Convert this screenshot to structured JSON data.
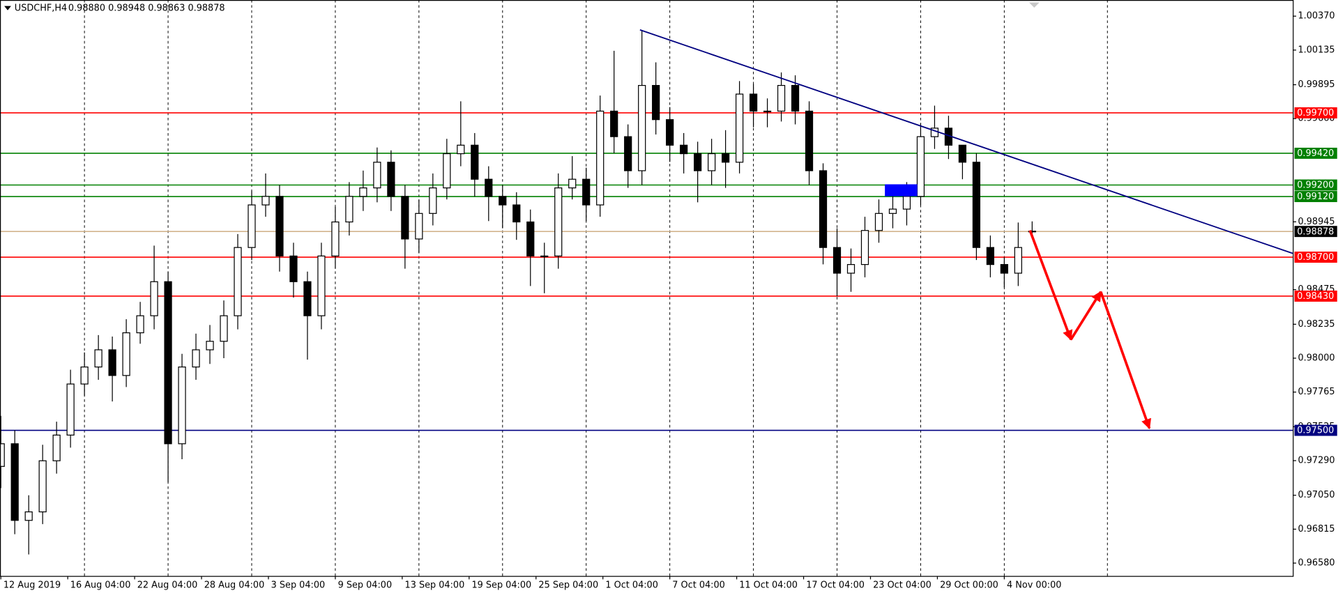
{
  "chart_data": {
    "type": "candlestick",
    "symbol": "USDCHF,H4",
    "header_values": "0.98880 0.98948 0.98863 0.98878",
    "x": [
      0,
      5,
      10,
      15,
      20,
      25,
      30,
      35,
      40,
      45,
      50,
      55,
      60,
      65,
      70,
      75,
      80,
      85,
      90,
      95,
      100,
      105,
      110,
      115,
      120,
      125,
      130,
      135,
      140,
      145,
      150,
      155,
      160,
      165,
      170,
      175,
      180,
      185,
      190,
      195,
      200,
      205,
      210,
      215,
      220,
      225,
      230,
      235,
      240,
      245,
      250,
      255,
      260,
      265,
      270,
      275,
      280,
      285,
      290,
      295,
      300,
      305,
      310,
      315,
      320,
      325,
      330,
      335,
      340,
      345,
      350,
      355,
      360,
      365,
      370
    ],
    "open": [
      0.9725,
      0.97407,
      0.96876,
      0.96935,
      0.97289,
      0.97467,
      0.97821,
      0.97939,
      0.98058,
      0.9788,
      0.98176,
      0.98294,
      0.9853,
      0.97407,
      0.97939,
      0.98058,
      0.98117,
      0.98294,
      0.98767,
      0.99062,
      0.99121,
      0.98708,
      0.9853,
      0.98294,
      0.98708,
      0.98944,
      0.99121,
      0.9918,
      0.99358,
      0.99121,
      0.98826,
      0.99003,
      0.9918,
      0.99417,
      0.99476,
      0.9924,
      0.99121,
      0.99062,
      0.98944,
      0.98708,
      0.98708,
      0.9918,
      0.9924,
      0.99062,
      0.99712,
      0.99535,
      0.99299,
      0.9989,
      0.99653,
      0.99476,
      0.99417,
      0.99299,
      0.99417,
      0.99358,
      0.9983,
      0.99712,
      0.99712,
      0.9989,
      0.99712,
      0.99299,
      0.98767,
      0.98589,
      0.98649,
      0.98885,
      0.99003,
      0.99033,
      0.99121,
      0.99535,
      0.99594,
      0.99476,
      0.99358,
      0.98767,
      0.98649,
      0.98589,
      0.9888
    ],
    "high": [
      0.976,
      0.975,
      0.9705,
      0.974,
      0.9756,
      0.9792,
      0.9804,
      0.9816,
      0.9815,
      0.9827,
      0.9839,
      0.9878,
      0.986,
      0.9803,
      0.9817,
      0.9823,
      0.984,
      0.9886,
      0.9916,
      0.9928,
      0.992,
      0.988,
      0.986,
      0.988,
      0.9905,
      0.9922,
      0.993,
      0.9946,
      0.9944,
      0.992,
      0.991,
      0.9928,
      0.9952,
      0.9978,
      0.9956,
      0.9933,
      0.992,
      0.9915,
      0.9903,
      0.988,
      0.9928,
      0.994,
      0.9932,
      0.9982,
      1.0013,
      0.9962,
      1.0027,
      1.0005,
      0.9974,
      0.9956,
      0.995,
      0.9952,
      0.9958,
      0.9992,
      0.999,
      0.998,
      0.9998,
      0.9996,
      0.9978,
      0.9935,
      0.989,
      0.9876,
      0.9898,
      0.991,
      0.9914,
      0.9922,
      0.9963,
      0.9975,
      0.9968,
      0.9946,
      0.9942,
      0.9885,
      0.987,
      0.9894,
      0.98948
    ],
    "low": [
      0.971,
      0.9678,
      0.9664,
      0.9685,
      0.972,
      0.9738,
      0.9774,
      0.9785,
      0.977,
      0.978,
      0.981,
      0.982,
      0.9714,
      0.973,
      0.9785,
      0.9796,
      0.98,
      0.982,
      0.9868,
      0.9898,
      0.986,
      0.9842,
      0.9799,
      0.982,
      0.9862,
      0.9885,
      0.9902,
      0.9908,
      0.9902,
      0.9862,
      0.9873,
      0.9892,
      0.991,
      0.9933,
      0.9912,
      0.9895,
      0.989,
      0.9882,
      0.985,
      0.9845,
      0.9862,
      0.991,
      0.9895,
      0.9898,
      0.9942,
      0.9918,
      0.992,
      0.9955,
      0.9936,
      0.9928,
      0.9908,
      0.992,
      0.9918,
      0.9928,
      0.996,
      0.996,
      0.9964,
      0.9962,
      0.992,
      0.9865,
      0.9843,
      0.9846,
      0.9856,
      0.988,
      0.989,
      0.9892,
      0.9906,
      0.9945,
      0.9938,
      0.9924,
      0.9868,
      0.9856,
      0.9849,
      0.985,
      0.98863
    ],
    "close": [
      0.97407,
      0.96876,
      0.96935,
      0.97289,
      0.97467,
      0.97821,
      0.97939,
      0.98058,
      0.9788,
      0.98176,
      0.98294,
      0.9853,
      0.97407,
      0.97939,
      0.98058,
      0.98117,
      0.98294,
      0.98767,
      0.99062,
      0.99121,
      0.98708,
      0.9853,
      0.98294,
      0.98708,
      0.98944,
      0.99121,
      0.9918,
      0.99358,
      0.99121,
      0.98826,
      0.99003,
      0.9918,
      0.99417,
      0.99476,
      0.9924,
      0.99121,
      0.99062,
      0.98944,
      0.98708,
      0.98708,
      0.9918,
      0.9924,
      0.99062,
      0.99712,
      0.99535,
      0.99299,
      0.9989,
      0.99653,
      0.99476,
      0.99417,
      0.99299,
      0.99417,
      0.99358,
      0.9983,
      0.99712,
      0.99712,
      0.9989,
      0.99712,
      0.99299,
      0.98767,
      0.98589,
      0.98649,
      0.98885,
      0.99003,
      0.99033,
      0.99121,
      0.99535,
      0.99594,
      0.99476,
      0.99358,
      0.98767,
      0.98649,
      0.98589,
      0.98767,
      0.98878
    ],
    "bull_fill": "#ffffff",
    "bear_fill": "#000000",
    "candle_stroke": "#000000",
    "xlim": [
      -0.3,
      463.5
    ],
    "ylim": [
      0.96491,
      1.00482
    ],
    "xticks": [
      {
        "value": 0,
        "label": "12 Aug 2019"
      },
      {
        "value": 24,
        "label": "16 Aug 04:00"
      },
      {
        "value": 48,
        "label": "22 Aug 04:00"
      },
      {
        "value": 72,
        "label": "28 Aug 04:00"
      },
      {
        "value": 96,
        "label": "3 Sep 04:00"
      },
      {
        "value": 120,
        "label": "9 Sep 04:00"
      },
      {
        "value": 144,
        "label": "13 Sep 04:00"
      },
      {
        "value": 168,
        "label": "19 Sep 04:00"
      },
      {
        "value": 192,
        "label": "25 Sep 04:00"
      },
      {
        "value": 216,
        "label": "1 Oct 04:00"
      },
      {
        "value": 240,
        "label": "7 Oct 04:00"
      },
      {
        "value": 264,
        "label": "11 Oct 04:00"
      },
      {
        "value": 288,
        "label": "17 Oct 04:00"
      },
      {
        "value": 312,
        "label": "23 Oct 04:00"
      },
      {
        "value": 336,
        "label": "29 Oct 00:00"
      },
      {
        "value": 360,
        "label": "4 Nov 00:00"
      }
    ],
    "xgrid": [
      30,
      60,
      90,
      120,
      150,
      180,
      210,
      240,
      270,
      300,
      330,
      360,
      397
    ],
    "yticks": [
      {
        "value": 1.0037,
        "label": "1.00370"
      },
      {
        "value": 1.00135,
        "label": "1.00135"
      },
      {
        "value": 0.99895,
        "label": "0.99895"
      },
      {
        "value": 0.9966,
        "label": "0.99660"
      },
      {
        "value": 0.98945,
        "label": "0.98945"
      },
      {
        "value": 0.98475,
        "label": "0.98475"
      },
      {
        "value": 0.98235,
        "label": "0.98235"
      },
      {
        "value": 0.98,
        "label": "0.98000"
      },
      {
        "value": 0.97765,
        "label": "0.97765"
      },
      {
        "value": 0.97525,
        "label": "0.97525"
      },
      {
        "value": 0.9729,
        "label": "0.97290"
      },
      {
        "value": 0.9705,
        "label": "0.97050"
      },
      {
        "value": 0.96815,
        "label": "0.96815"
      },
      {
        "value": 0.9658,
        "label": "0.96580"
      }
    ],
    "levels": [
      {
        "value": 0.997,
        "label": "0.99700",
        "color": "#ff0000"
      },
      {
        "value": 0.9942,
        "label": "0.99420",
        "color": "#008000"
      },
      {
        "value": 0.992,
        "label": "0.99200",
        "color": "#008000"
      },
      {
        "value": 0.9912,
        "label": "0.99120",
        "color": "#008000"
      },
      {
        "value": 0.987,
        "label": "0.98700",
        "color": "#ff0000"
      },
      {
        "value": 0.9843,
        "label": "0.98430",
        "color": "#ff0000"
      },
      {
        "value": 0.975,
        "label": "0.97500",
        "color": "#000080"
      }
    ],
    "current_price": {
      "value": 0.98878,
      "label": "0.98878",
      "color": "#000000",
      "line_color": "#d2b48c"
    }
  }
}
